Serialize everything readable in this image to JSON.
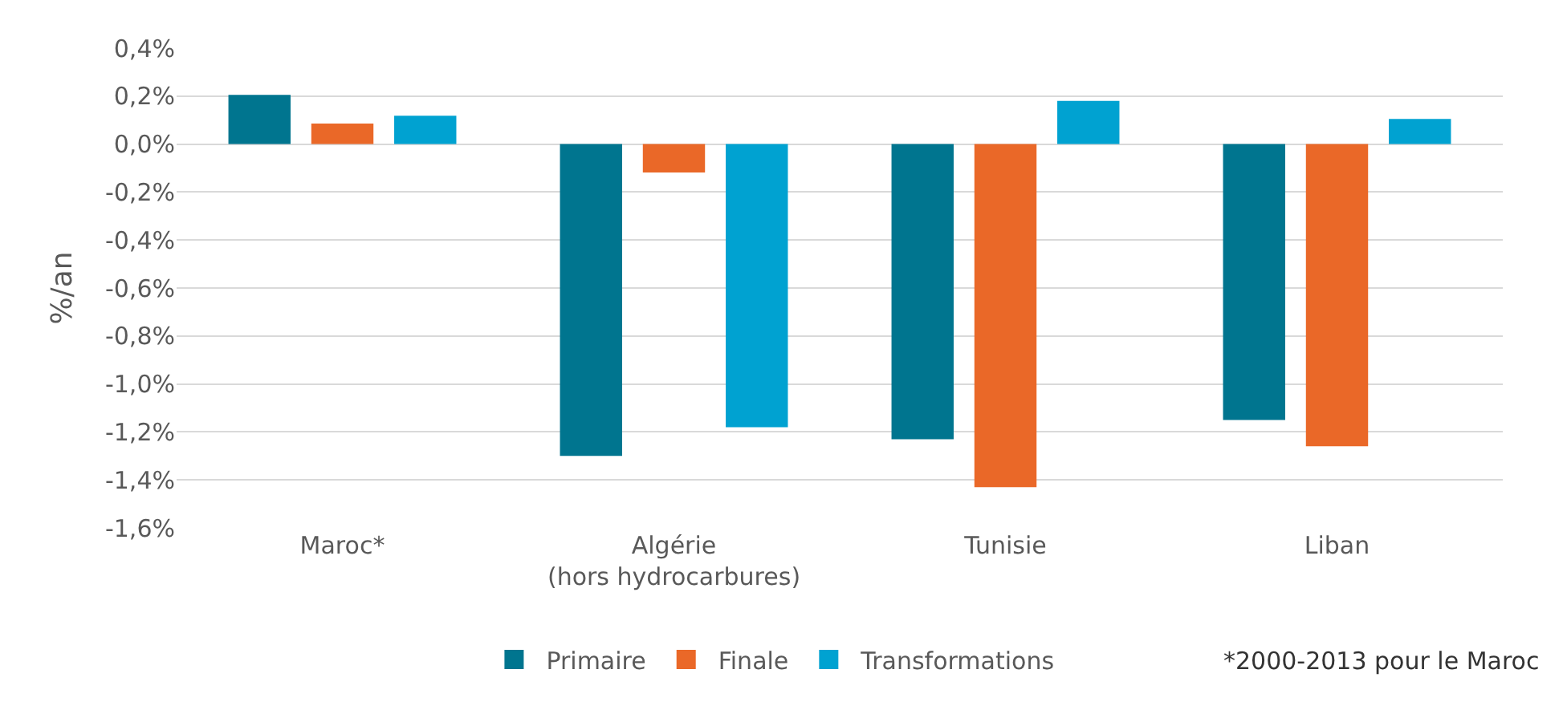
{
  "chart_data": {
    "type": "bar",
    "ylabel": "%/an",
    "categories": [
      "Maroc*",
      "Algérie\n(hors hydrocarbures)",
      "Tunisie",
      "Liban"
    ],
    "series": [
      {
        "name": "Primaire",
        "color": "#00758f",
        "values": [
          0.205,
          -1.3,
          -1.23,
          -1.15
        ]
      },
      {
        "name": "Finale",
        "color": "#ea6828",
        "values": [
          0.086,
          -0.118,
          -1.43,
          -1.26
        ]
      },
      {
        "name": "Transformations",
        "color": "#00a2d1",
        "values": [
          0.118,
          -1.18,
          0.18,
          0.105
        ]
      }
    ],
    "ylim": [
      -1.6,
      0.4
    ],
    "yticks": [
      {
        "value": 0.4,
        "label": "0,4%"
      },
      {
        "value": 0.2,
        "label": "0,2%"
      },
      {
        "value": 0,
        "label": "0,0%"
      },
      {
        "value": -0.2,
        "label": "-0,2%"
      },
      {
        "value": -0.4,
        "label": "-0,4%"
      },
      {
        "value": -0.6,
        "label": "-0,6%"
      },
      {
        "value": -0.8,
        "label": "-0,8%"
      },
      {
        "value": -1.0,
        "label": "-1,0%"
      },
      {
        "value": -1.2,
        "label": "-1,2%"
      },
      {
        "value": -1.4,
        "label": "-1,4%"
      },
      {
        "value": -1.6,
        "label": "-1,6%"
      }
    ],
    "grid": "y",
    "legend": "bottom",
    "annotations": [
      "*2000-2013 pour le Maroc"
    ]
  }
}
